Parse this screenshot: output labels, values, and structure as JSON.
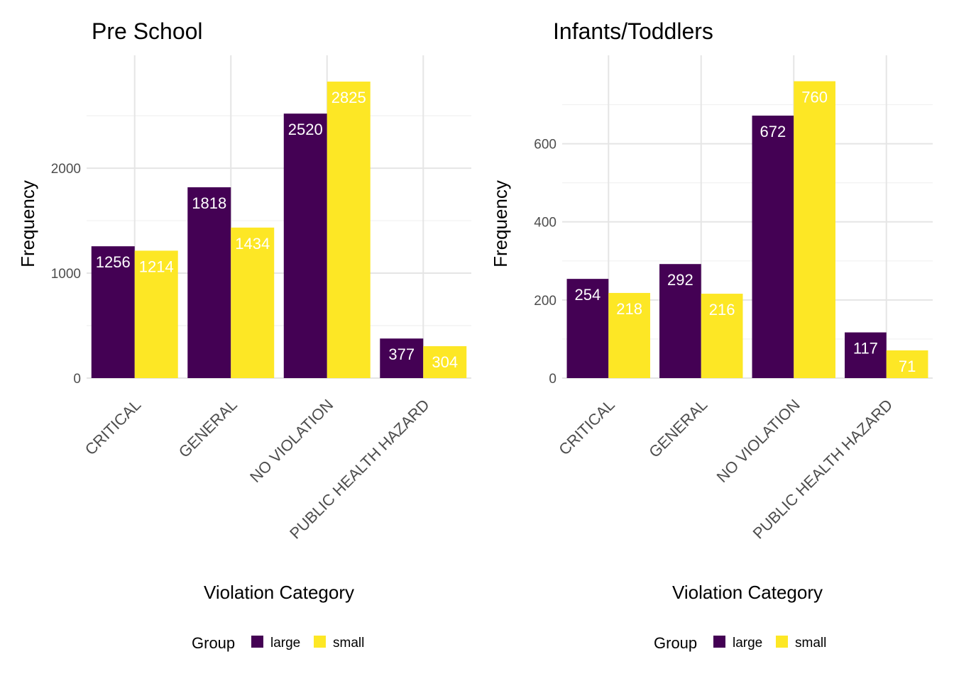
{
  "chart_data": [
    {
      "type": "bar",
      "title": "Pre School",
      "xlabel": "Violation Category",
      "ylabel": "Frequency",
      "categories": [
        "CRITICAL",
        "GENERAL",
        "NO VIOLATION",
        "PUBLIC HEALTH HAZARD"
      ],
      "series": [
        {
          "name": "large",
          "color": "#440154",
          "values": [
            1256,
            1818,
            2520,
            377
          ]
        },
        {
          "name": "small",
          "color": "#FDE725",
          "values": [
            1214,
            1434,
            2825,
            304
          ]
        }
      ],
      "ylim": [
        0,
        2940
      ],
      "yticks": [
        0,
        1000,
        2000
      ],
      "grid": true,
      "legend": {
        "title": "Group",
        "position": "bottom"
      }
    },
    {
      "type": "bar",
      "title": "Infants/Toddlers",
      "xlabel": "Violation Category",
      "ylabel": "Frequency",
      "categories": [
        "CRITICAL",
        "GENERAL",
        "NO VIOLATION",
        "PUBLIC HEALTH HAZARD"
      ],
      "series": [
        {
          "name": "large",
          "color": "#440154",
          "values": [
            254,
            292,
            672,
            117
          ]
        },
        {
          "name": "small",
          "color": "#FDE725",
          "values": [
            218,
            216,
            760,
            71
          ]
        }
      ],
      "ylim": [
        0,
        790
      ],
      "yticks": [
        0,
        200,
        400,
        600
      ],
      "grid": true,
      "legend": {
        "title": "Group",
        "position": "bottom"
      }
    }
  ]
}
